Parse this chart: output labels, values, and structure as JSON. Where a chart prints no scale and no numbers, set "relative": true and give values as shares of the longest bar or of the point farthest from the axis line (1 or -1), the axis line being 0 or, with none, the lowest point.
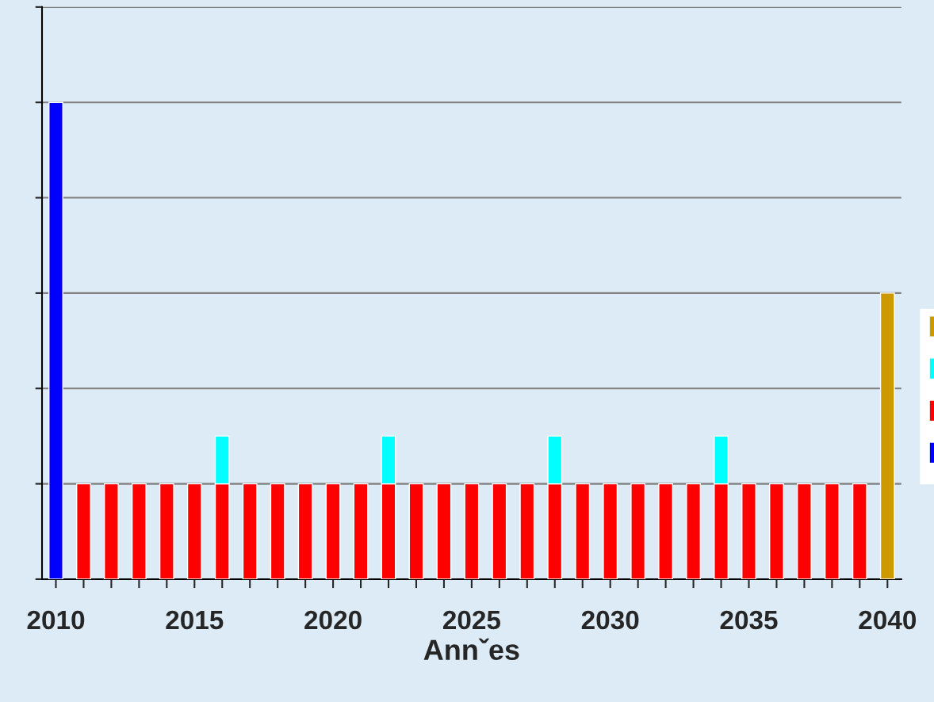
{
  "chart_data": {
    "type": "bar",
    "stacked": true,
    "relative": true,
    "xlabel": "Annˇes",
    "grid": "y",
    "x": [
      2010,
      2011,
      2012,
      2013,
      2014,
      2015,
      2016,
      2017,
      2018,
      2019,
      2020,
      2021,
      2022,
      2023,
      2024,
      2025,
      2026,
      2027,
      2028,
      2029,
      2030,
      2031,
      2032,
      2033,
      2034,
      2035,
      2036,
      2037,
      2038,
      2039,
      2040
    ],
    "xlim": [
      2009.5,
      2040.5
    ],
    "xticks": [
      2010,
      {
        "value": 2011,
        "label": null
      },
      {
        "value": 2012,
        "label": null
      },
      {
        "value": 2013,
        "label": null
      },
      {
        "value": 2014,
        "label": null
      },
      2015,
      {
        "value": 2016,
        "label": null
      },
      {
        "value": 2017,
        "label": null
      },
      {
        "value": 2018,
        "label": null
      },
      {
        "value": 2019,
        "label": null
      },
      2020,
      {
        "value": 2021,
        "label": null
      },
      {
        "value": 2022,
        "label": null
      },
      {
        "value": 2023,
        "label": null
      },
      {
        "value": 2024,
        "label": null
      },
      2025,
      {
        "value": 2026,
        "label": null
      },
      {
        "value": 2027,
        "label": null
      },
      {
        "value": 2028,
        "label": null
      },
      {
        "value": 2029,
        "label": null
      },
      2030,
      {
        "value": 2031,
        "label": null
      },
      {
        "value": 2032,
        "label": null
      },
      {
        "value": 2033,
        "label": null
      },
      {
        "value": 2034,
        "label": null
      },
      2035,
      {
        "value": 2036,
        "label": null
      },
      {
        "value": 2037,
        "label": null
      },
      {
        "value": 2038,
        "label": null
      },
      {
        "value": 2039,
        "label": null
      },
      2040
    ],
    "series": [
      {
        "color": "#0000ff",
        "values": [
          1,
          null,
          null,
          null,
          null,
          null,
          null,
          null,
          null,
          null,
          null,
          null,
          null,
          null,
          null,
          null,
          null,
          null,
          null,
          null,
          null,
          null,
          null,
          null,
          null,
          null,
          null,
          null,
          null,
          null,
          null
        ]
      },
      {
        "color": "#ff0000",
        "values": [
          null,
          0.2,
          0.2,
          0.2,
          0.2,
          0.2,
          0.2,
          0.2,
          0.2,
          0.2,
          0.2,
          0.2,
          0.2,
          0.2,
          0.2,
          0.2,
          0.2,
          0.2,
          0.2,
          0.2,
          0.2,
          0.2,
          0.2,
          0.2,
          0.2,
          0.2,
          0.2,
          0.2,
          0.2,
          0.2,
          null
        ]
      },
      {
        "color": "#00ffff",
        "values": [
          null,
          null,
          null,
          null,
          null,
          null,
          0.1,
          null,
          null,
          null,
          null,
          null,
          0.1,
          null,
          null,
          null,
          null,
          null,
          0.1,
          null,
          null,
          null,
          null,
          null,
          0.1,
          null,
          null,
          null,
          null,
          null,
          null
        ]
      },
      {
        "color": "#cc9900",
        "values": [
          null,
          null,
          null,
          null,
          null,
          null,
          null,
          null,
          null,
          null,
          null,
          null,
          null,
          null,
          null,
          null,
          null,
          null,
          null,
          null,
          null,
          null,
          null,
          null,
          null,
          null,
          null,
          null,
          null,
          null,
          0.6
        ]
      }
    ]
  }
}
